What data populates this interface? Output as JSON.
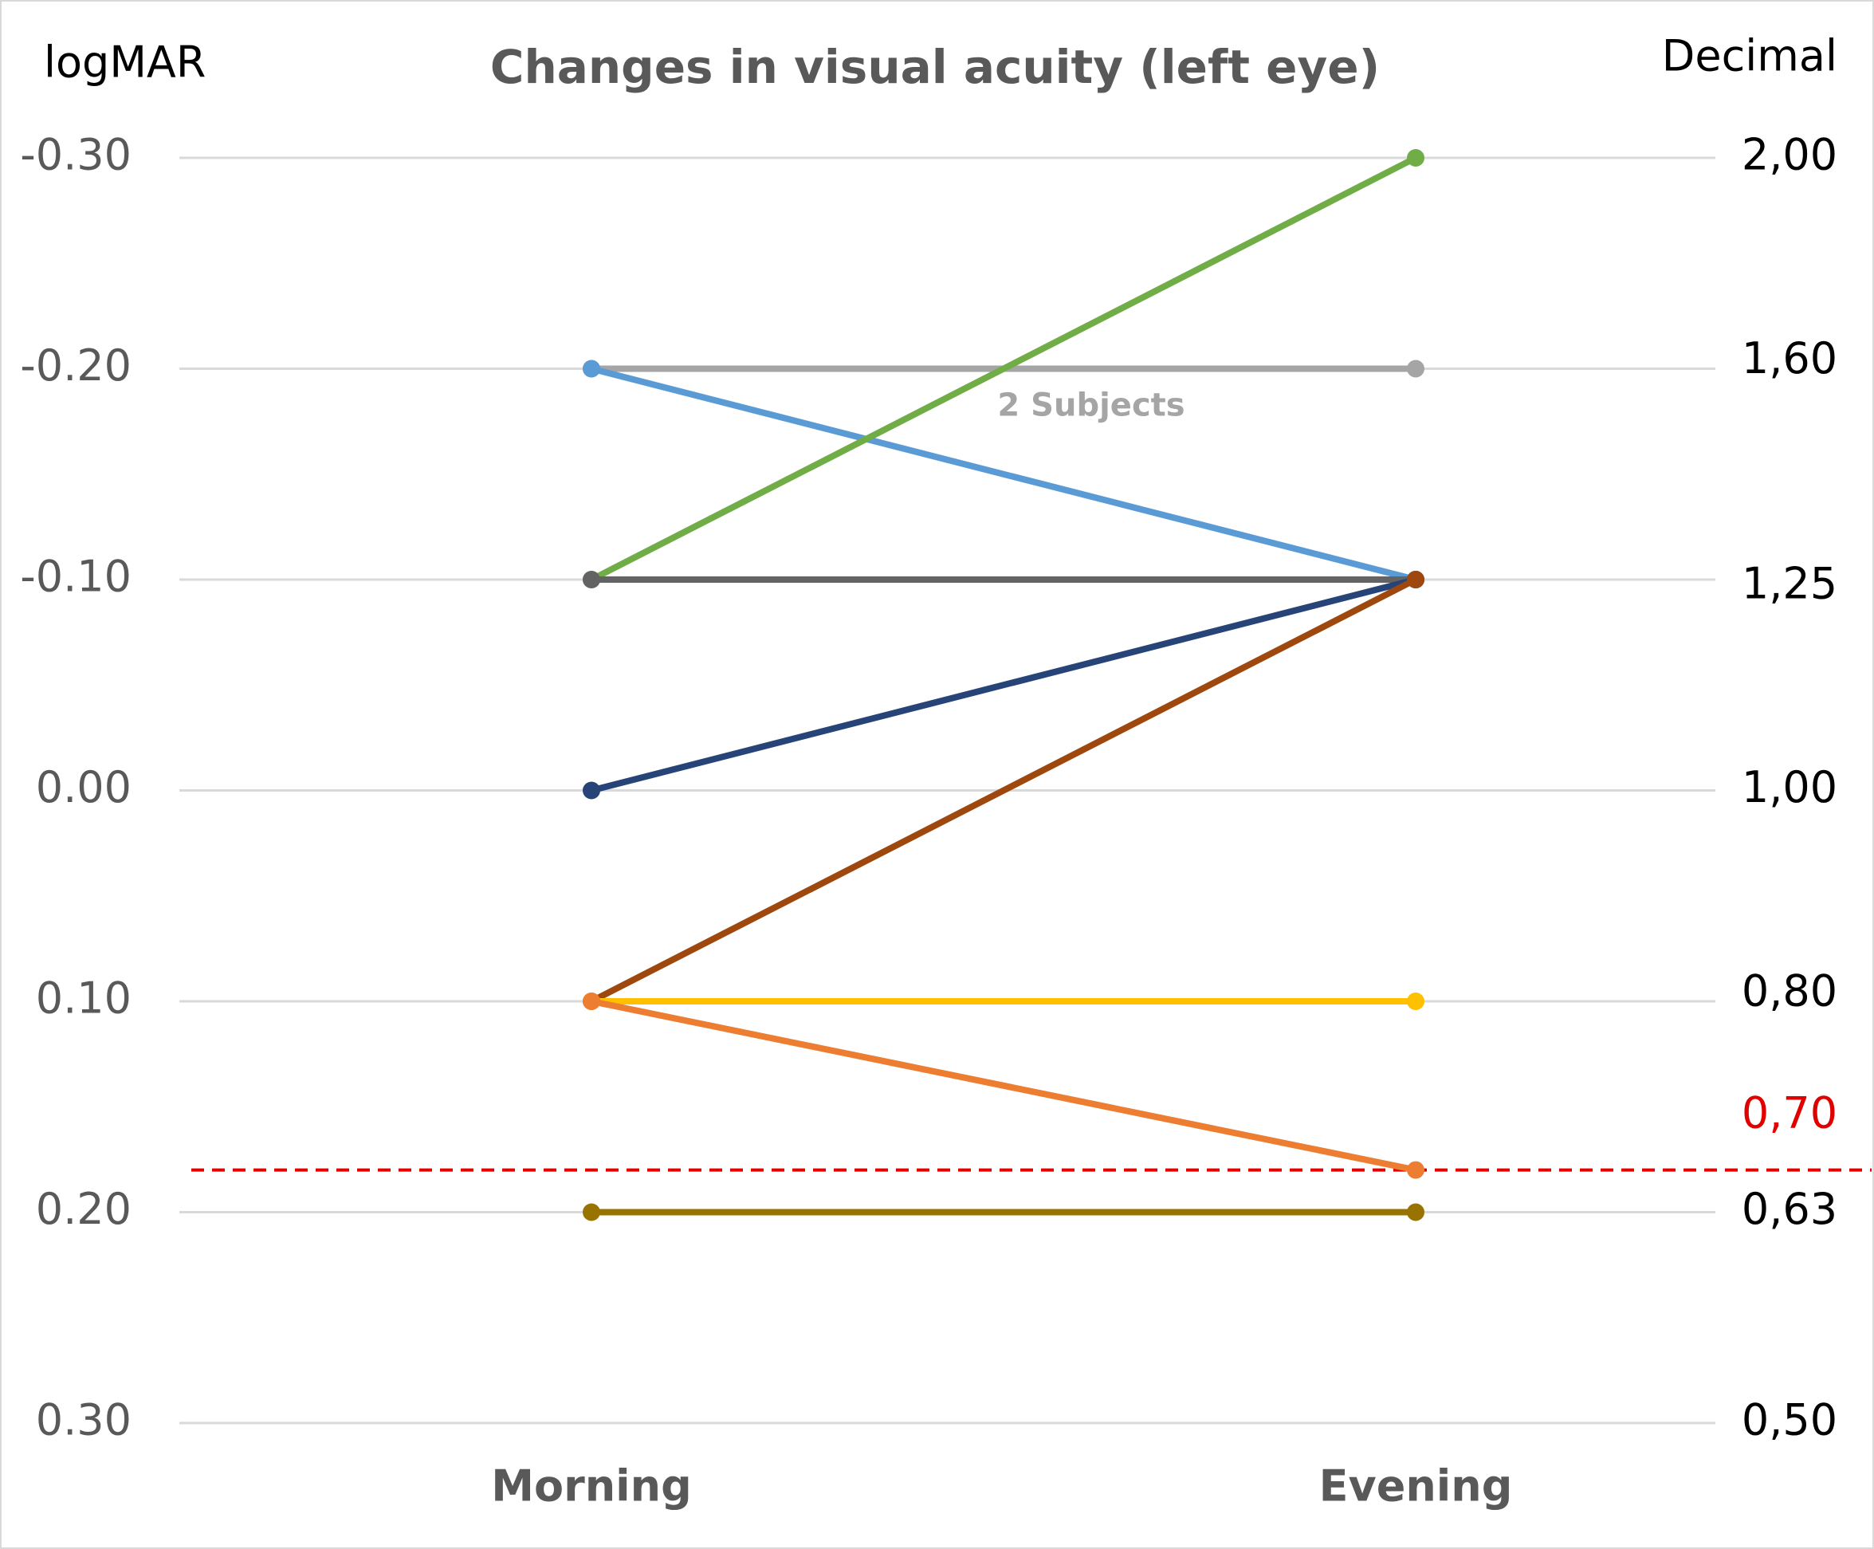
{
  "chart_data": {
    "type": "line",
    "title": "Changes in visual acuity (left eye)",
    "y_label": "logMAR",
    "y2_label": "Decimal",
    "categories": [
      "Morning",
      "Evening"
    ],
    "series": [
      {
        "color": "#a5a5a5",
        "values": [
          -0.2,
          -0.2
        ]
      },
      {
        "color": "#5b9bd5",
        "values": [
          -0.2,
          -0.1
        ]
      },
      {
        "color": "#70ad47",
        "values": [
          -0.1,
          -0.3
        ]
      },
      {
        "color": "#636363",
        "values": [
          -0.1,
          -0.1
        ]
      },
      {
        "color": "#264478",
        "values": [
          0,
          -0.1
        ]
      },
      {
        "color": "#9e480e",
        "values": [
          0.1,
          -0.1
        ]
      },
      {
        "color": "#ffc000",
        "values": [
          0.1,
          0.1
        ]
      },
      {
        "color": "#ed7d31",
        "values": [
          0.1,
          0.18
        ]
      },
      {
        "color": "#997300",
        "values": [
          0.2,
          0.2
        ]
      }
    ],
    "annotation": {
      "text": "2 Subjects",
      "category": 1,
      "value": -0.2
    },
    "ylim": [
      -0.3,
      0.3
    ],
    "y_inverted": true,
    "yticks": [
      {
        "value": -0.3,
        "label": "-0.30"
      },
      {
        "value": -0.2,
        "label": "-0.20"
      },
      {
        "value": -0.1,
        "label": "-0.10"
      },
      {
        "value": 0,
        "label": "0.00"
      },
      {
        "value": 0.1,
        "label": "0.10"
      },
      {
        "value": 0.2,
        "label": "0.20"
      },
      {
        "value": 0.3,
        "label": "0.30"
      }
    ],
    "y2lim": [
      0.5,
      2
    ],
    "y2_log": true,
    "y2ticks": [
      {
        "value": 2,
        "label": "2,00"
      },
      {
        "value": 1.6,
        "label": "1,60"
      },
      {
        "value": 1.25,
        "label": "1,25"
      },
      {
        "value": 1,
        "label": "1,00"
      },
      {
        "value": 0.8,
        "label": "0,80"
      },
      {
        "value": 0.7,
        "label": "0,70",
        "color": "#e00000"
      },
      {
        "value": 0.63,
        "label": "0,63"
      },
      {
        "value": 0.5,
        "label": "0,50"
      }
    ],
    "reference_line": {
      "value": 0.18,
      "color": "#e00000",
      "style": "dashed"
    },
    "grid": true
  }
}
